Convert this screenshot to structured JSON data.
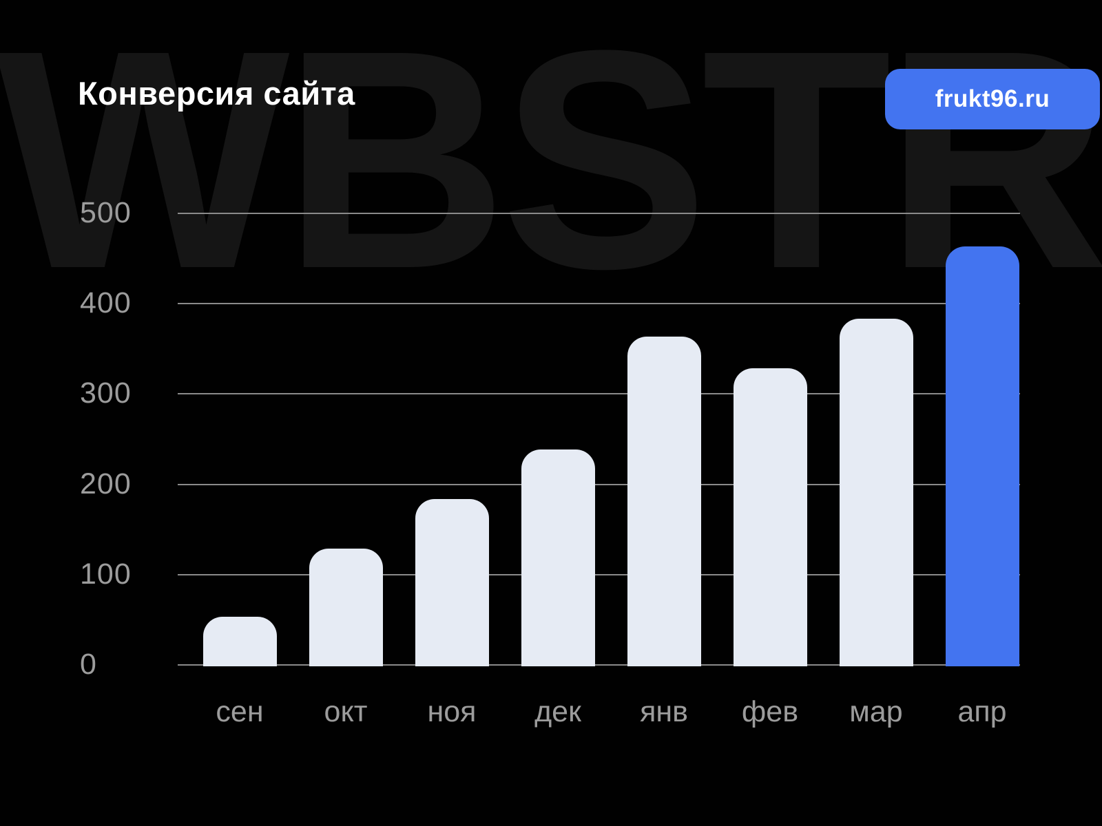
{
  "background": {
    "watermark": "WBSTR",
    "color": "#010101"
  },
  "header": {
    "title": "Конверсия сайта",
    "badge_label": "frukt96.ru"
  },
  "colors": {
    "accent_blue": "#4374F0",
    "bar_light": "#E6EBF4",
    "grid_line": "#8A8A8A",
    "axis_text": "#9C9C9C",
    "watermark_text": "#151515",
    "title_text": "#FFFFFF"
  },
  "chart_data": {
    "type": "bar",
    "title": "Конверсия сайта",
    "categories": [
      "сен",
      "окт",
      "ноя",
      "дек",
      "янв",
      "фев",
      "мар",
      "апр"
    ],
    "values": [
      55,
      130,
      185,
      240,
      365,
      330,
      385,
      465
    ],
    "highlight_index": 7,
    "highlight_category": "апр",
    "xlabel": "",
    "ylabel": "",
    "yticks": [
      0,
      100,
      200,
      300,
      400,
      500
    ],
    "ylim": [
      0,
      500
    ],
    "grid": "horizontal",
    "legend": false
  }
}
